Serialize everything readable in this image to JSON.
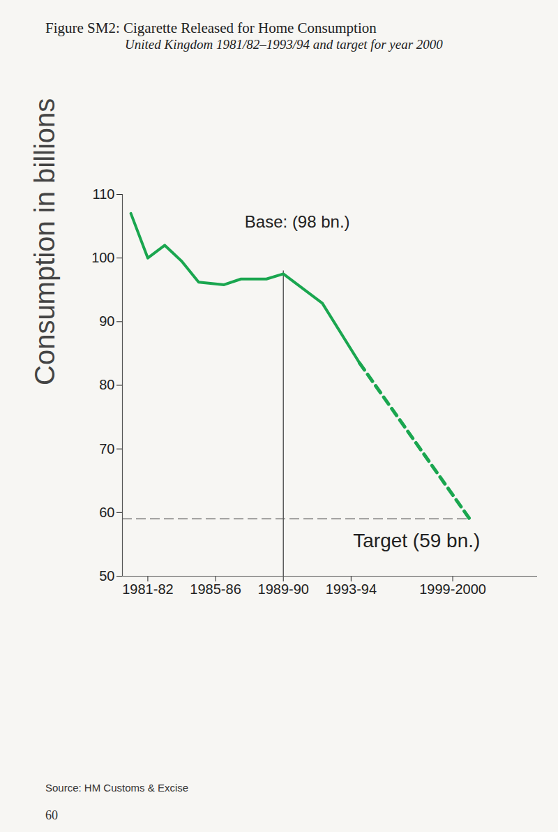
{
  "chart_data": {
    "type": "line",
    "title": "Figure SM2:  Cigarette Released for Home Consumption",
    "subtitle": "United Kingdom   1981/82–1993/94 and target for year 2000",
    "ylabel": "Consumption in billions",
    "xlim": [
      1979.5,
      2004
    ],
    "xticks": [
      {
        "value": 1981,
        "label": "1981-82"
      },
      {
        "value": 1985,
        "label": "1985-86"
      },
      {
        "value": 1989,
        "label": "1989-90"
      },
      {
        "value": 1993,
        "label": "1993-94"
      },
      {
        "value": 1999,
        "label": "1999-2000"
      }
    ],
    "ylim": [
      50,
      110
    ],
    "yticks": [
      50,
      60,
      70,
      80,
      90,
      100,
      110
    ],
    "grid": false,
    "series": [
      {
        "color": "#1aa64f",
        "line_style": "solid",
        "x": [
          1980,
          1981,
          1982,
          1983,
          1984,
          1985.5,
          1986.5,
          1988,
          1989,
          1991.3,
          1993.5
        ],
        "values": [
          107,
          100,
          102,
          99.5,
          96.2,
          95.8,
          96.7,
          96.7,
          97.5,
          92.9,
          83.5
        ]
      },
      {
        "color": "#1aa64f",
        "line_style": "dashed",
        "x": [
          1993.5,
          2000
        ],
        "values": [
          83.5,
          59
        ]
      }
    ],
    "annotations": [
      {
        "label": "Base: (98 bn.)",
        "x": 1989,
        "y": 98
      },
      {
        "label": "Target (59 bn.)",
        "x": 2000,
        "y": 59
      }
    ],
    "source": "Source: HM Customs & Excise",
    "page": "60"
  }
}
